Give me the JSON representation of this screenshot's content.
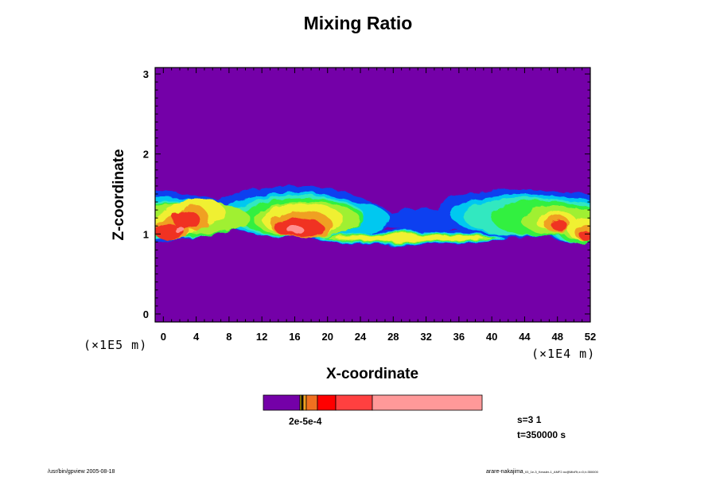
{
  "chart_data": {
    "type": "heatmap",
    "title": "Mixing Ratio",
    "xlabel": "X-coordinate",
    "ylabel": "Z-coordinate",
    "xscale_label": "(×1E4 m)",
    "yscale_label": "(×1E5 m)",
    "xlim": [
      -1,
      52
    ],
    "ylim": [
      -0.1,
      3.08
    ],
    "x_ticks": [
      0,
      4,
      8,
      12,
      16,
      20,
      24,
      28,
      32,
      36,
      40,
      44,
      48,
      52
    ],
    "y_ticks": [
      0,
      1,
      2,
      3
    ],
    "background_color": "#7400a8",
    "colors": {
      "background": "#7400a8",
      "blue": "#1040f0",
      "cyan": "#00c8f0",
      "aquamarine": "#30e8c0",
      "green": "#30f040",
      "lime": "#a0f030",
      "yellow": "#f0f030",
      "orange": "#f0a020",
      "red": "#f03020",
      "pink": "#ff9090"
    },
    "colorbar": {
      "colors": [
        "#7400a8",
        "#e0c000",
        "#f0a020",
        "#f07020",
        "#ff0000",
        "#ff4040",
        "#ff9999"
      ],
      "label_text": "2e-5e-4"
    },
    "info": {
      "s": "s=3 1",
      "t": "t=350000 s"
    }
  },
  "footer": {
    "left": "/usr/bin/gpview 2005-08-18",
    "right": "arare-nakajima",
    "right_small": "_03_1e-3_Kessler-1_AMF2.nc@MixRt,x=0,t=350000"
  }
}
